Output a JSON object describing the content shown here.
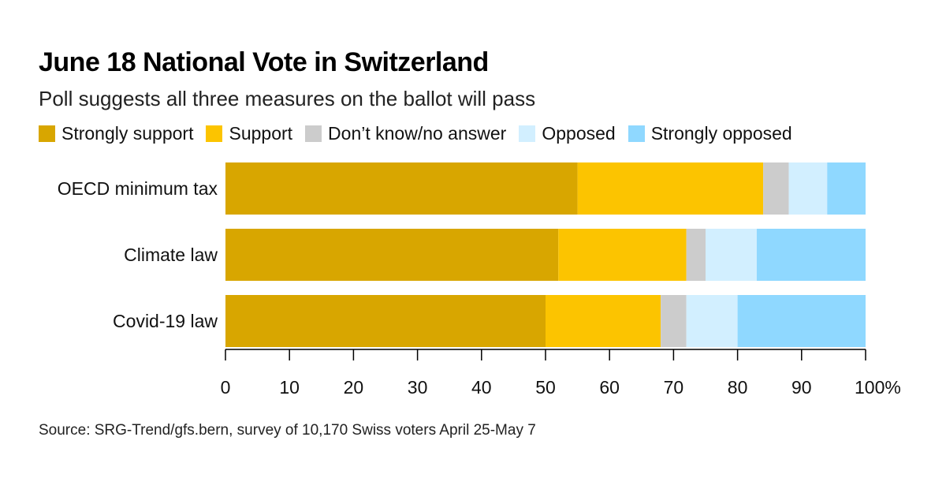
{
  "title": "June 18 National Vote in Switzerland",
  "subtitle": "Poll suggests all three measures on the ballot will pass",
  "source": "Source: SRG-Trend/gfs.bern, survey of 10,170 Swiss voters April 25-May 7",
  "chart_data": {
    "type": "bar",
    "orientation": "horizontal",
    "stacked": true,
    "categories": [
      "OECD minimum tax",
      "Climate law",
      "Covid-19 law"
    ],
    "series": [
      {
        "name": "Strongly support",
        "color": "#d8a600",
        "values": [
          55,
          52,
          50
        ]
      },
      {
        "name": "Support",
        "color": "#fcc400",
        "values": [
          29,
          20,
          18
        ]
      },
      {
        "name": "Don’t know/no answer",
        "color": "#cccccc",
        "values": [
          4,
          3,
          4
        ]
      },
      {
        "name": "Opposed",
        "color": "#d2efff",
        "values": [
          6,
          8,
          8
        ]
      },
      {
        "name": "Strongly opposed",
        "color": "#8fd8ff",
        "values": [
          6,
          17,
          20
        ]
      }
    ],
    "xlim": [
      0,
      100
    ],
    "ticks": [
      0,
      10,
      20,
      30,
      40,
      50,
      60,
      70,
      80,
      90,
      100
    ],
    "tick_labels": [
      "0",
      "10",
      "20",
      "30",
      "40",
      "50",
      "60",
      "70",
      "80",
      "90",
      "100%"
    ],
    "grid": false,
    "legend_position": "top-left"
  }
}
